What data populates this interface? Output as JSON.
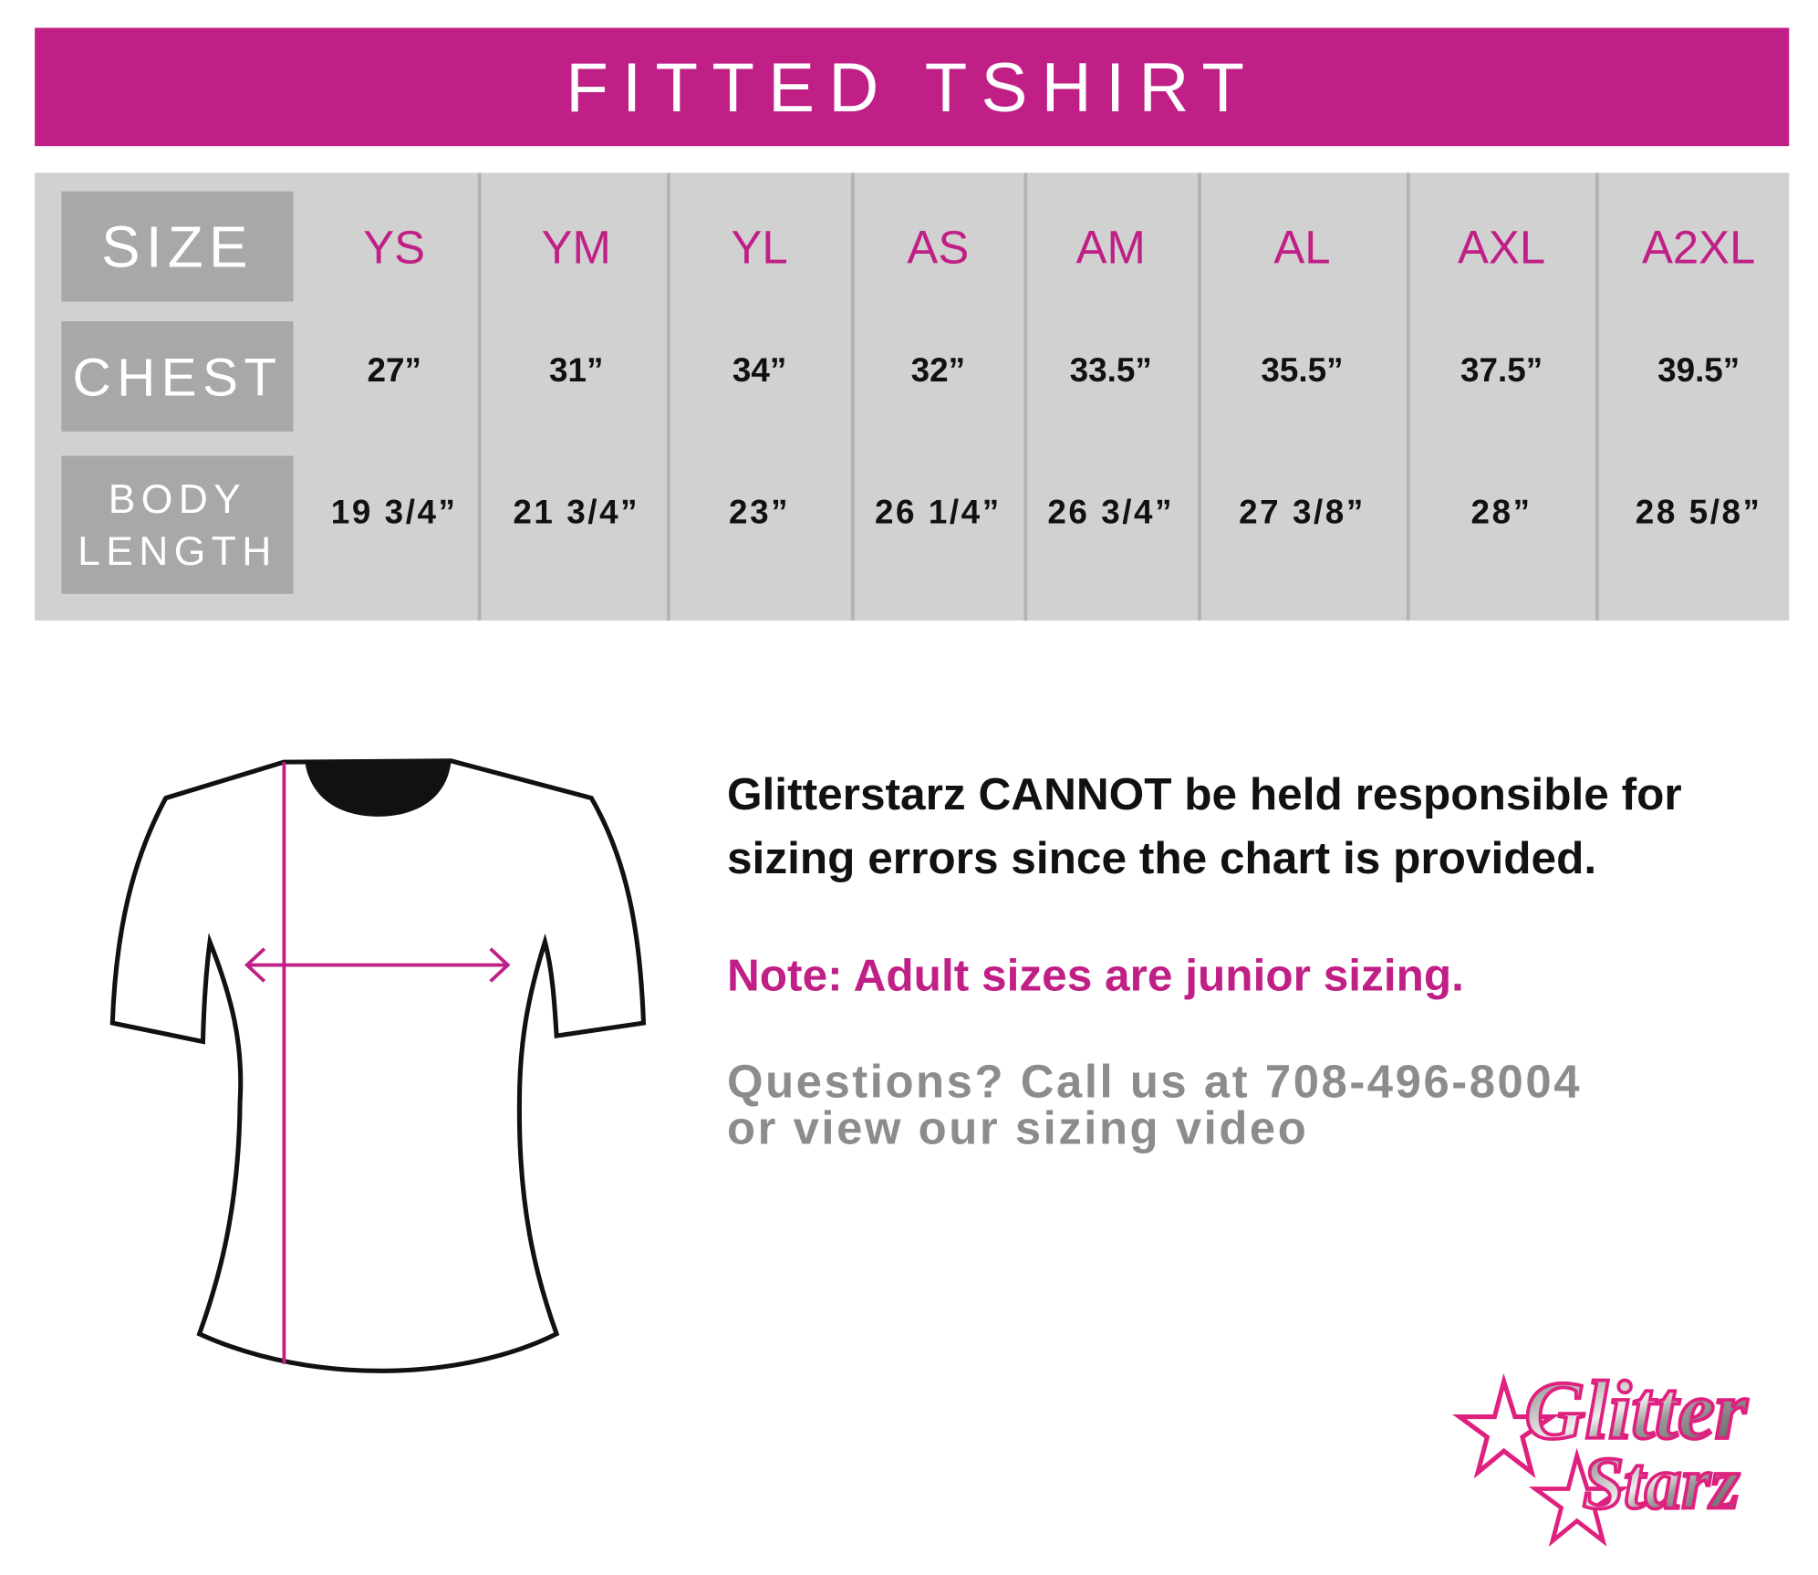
{
  "title": "FITTED TSHIRT",
  "table": {
    "row_labels": {
      "size": "SIZE",
      "chest": "CHEST",
      "body_length_1": "BODY",
      "body_length_2": "LENGTH"
    },
    "sizes": [
      "YS",
      "YM",
      "YL",
      "AS",
      "AM",
      "AL",
      "AXL",
      "A2XL"
    ],
    "chest": [
      "27”",
      "31”",
      "34”",
      "32”",
      "33.5”",
      "35.5”",
      "37.5”",
      "39.5”"
    ],
    "body_length": [
      "19 3/4”",
      "21 3/4”",
      "23”",
      "26 1/4”",
      "26 3/4”",
      "27 3/8”",
      "28”",
      "28 5/8”"
    ]
  },
  "disclaimer_1": "Glitterstarz CANNOT be held responsible for",
  "disclaimer_2": "sizing errors since the chart is provided.",
  "note": "Note: Adult sizes are junior sizing.",
  "questions_1": "Questions? Call us at 708-496-8004",
  "questions_2": "or view our sizing video",
  "logo": {
    "line1": "Glitter",
    "line2": "Starz"
  },
  "colors": {
    "brand": "#c01f86",
    "table_bg": "#d1d1d1",
    "label_bg": "#a8a8a8",
    "muted_text": "#8c8c8c"
  }
}
